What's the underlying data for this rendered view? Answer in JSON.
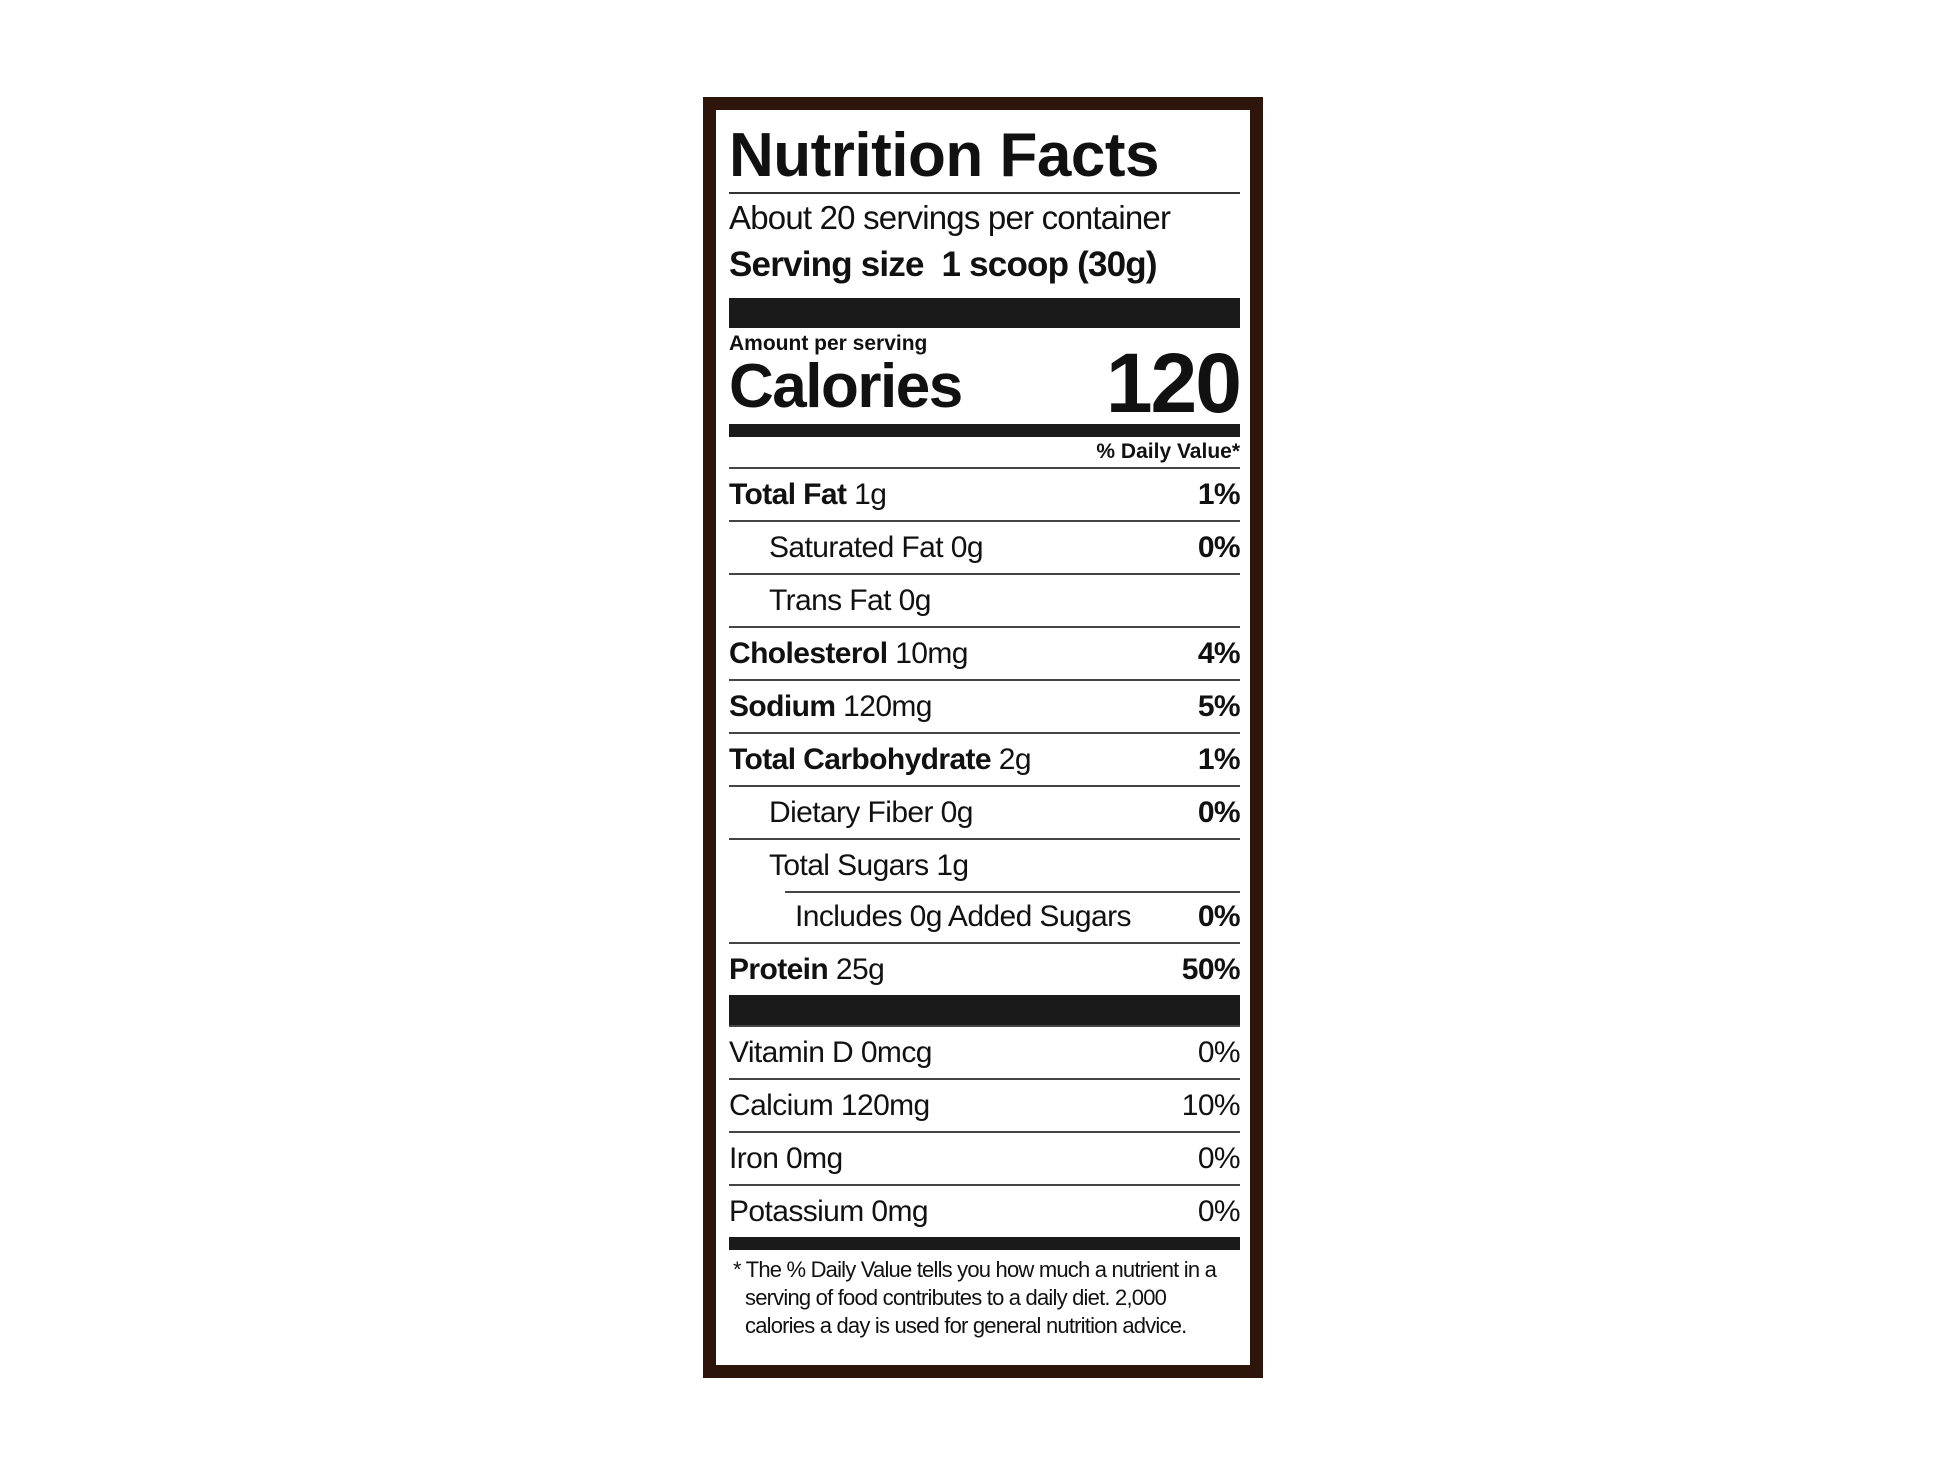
{
  "title": "Nutrition Facts",
  "servings": "About 20 servings per container",
  "serving_size": {
    "label": "Serving size",
    "value": "1 scoop (30g)"
  },
  "amount_per_serving": "Amount per serving",
  "calories": {
    "label": "Calories",
    "value": "120"
  },
  "daily_value_header": "% Daily Value*",
  "nutrients": [
    {
      "name": "Total Fat",
      "amount": "1g",
      "dv": "1%"
    },
    {
      "name": "Saturated Fat",
      "amount": "0g",
      "dv": "0%"
    },
    {
      "name": "Trans Fat",
      "amount": "0g"
    },
    {
      "name": "Cholesterol",
      "amount": "10mg",
      "dv": "4%"
    },
    {
      "name": "Sodium",
      "amount": "120mg",
      "dv": "5%"
    },
    {
      "name": "Total Carbohydrate",
      "amount": "2g",
      "dv": "1%"
    },
    {
      "name": "Dietary Fiber",
      "amount": "0g",
      "dv": "0%"
    },
    {
      "name": "Total Sugars",
      "amount": "1g"
    },
    {
      "name": "Includes 0g Added Sugars",
      "dv": "0%"
    },
    {
      "name": "Protein",
      "amount": "25g",
      "dv": "50%"
    }
  ],
  "vitamins": [
    {
      "name": "Vitamin D",
      "amount": "0mcg",
      "dv": "0%"
    },
    {
      "name": "Calcium",
      "amount": "120mg",
      "dv": "10%"
    },
    {
      "name": "Iron",
      "amount": "0mg",
      "dv": "0%"
    },
    {
      "name": "Potassium",
      "amount": "0mg",
      "dv": "0%"
    }
  ],
  "footnote": "* The % Daily Value tells you how much a nutrient in a serving of food contributes to a daily diet. 2,000 calories a day is used for general nutrition advice."
}
